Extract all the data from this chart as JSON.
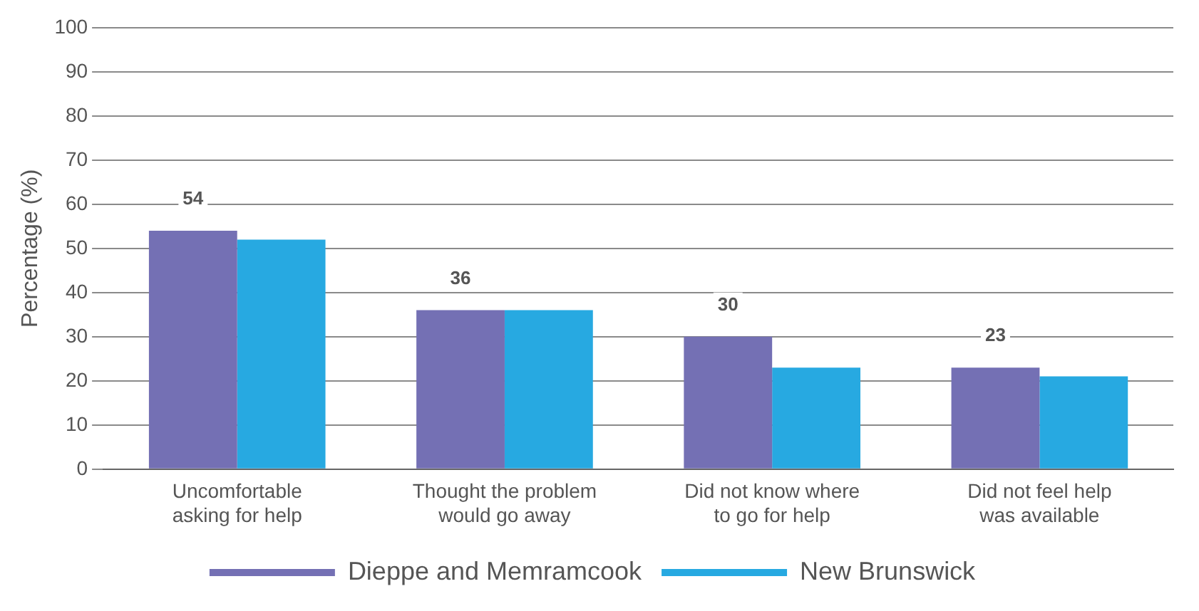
{
  "chart_data": {
    "type": "bar",
    "ylabel": "Percentage (%)",
    "categories": [
      "Uncomfortable asking for help",
      "Thought the problem would go away",
      "Did not know where to go for help",
      "Did not feel help was available"
    ],
    "series": [
      {
        "name": "Dieppe and Memramcook",
        "color": "#7470b4",
        "values": [
          54,
          36,
          30,
          23
        ],
        "value_labels": [
          "54",
          "36",
          "30",
          "23"
        ]
      },
      {
        "name": "New Brunswick",
        "color": "#27a9e1",
        "values": [
          52,
          36,
          23,
          21
        ]
      }
    ],
    "ylim": [
      0,
      100
    ],
    "yticks": [
      0,
      10,
      20,
      30,
      40,
      50,
      60,
      70,
      80,
      90,
      100
    ],
    "grid": "y",
    "legend": "bottom"
  }
}
